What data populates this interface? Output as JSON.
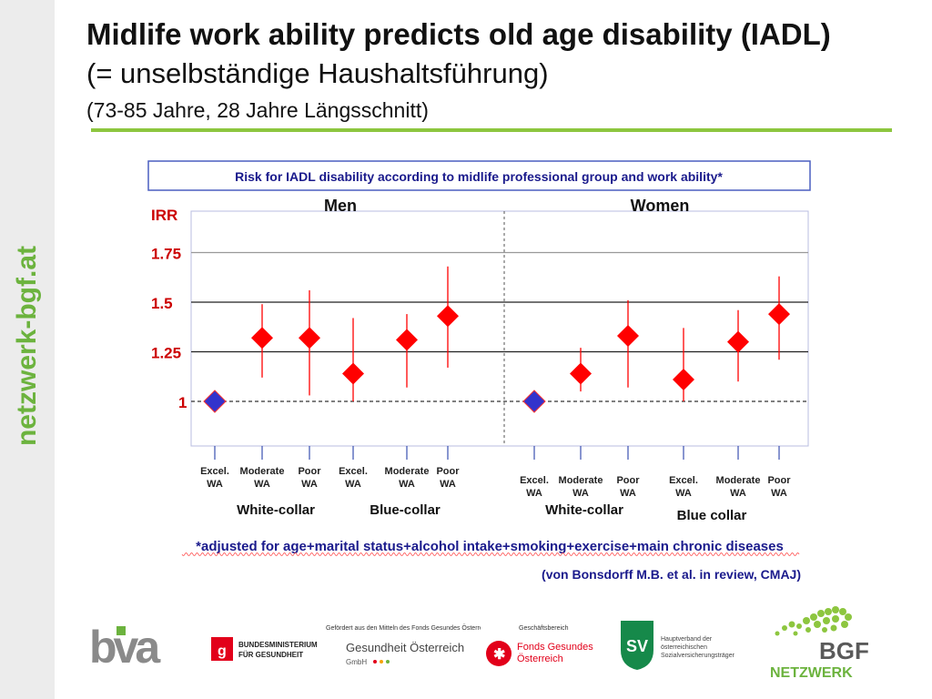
{
  "sidebar": {
    "text": "netzwerk-bgf.at"
  },
  "header": {
    "title": "Midlife work ability predicts old age disability (IADL)",
    "subtitle1": "(= unselbständige Haushaltsführung)",
    "subtitle2": "(73-85 Jahre, 28 Jahre Längsschnitt)"
  },
  "chart_data": {
    "type": "scatter",
    "title": "Risk for IADL disability according to midlife professional group and work ability*",
    "ylabel": "IRR",
    "ylim": [
      0.8,
      2.0
    ],
    "yticks": [
      "1.75",
      "1.5",
      "1.25",
      "1"
    ],
    "ytick_values": [
      1.75,
      1.5,
      1.25,
      1.0
    ],
    "reference_line": 1.0,
    "panels": [
      {
        "name": "Men",
        "groups": [
          {
            "name": "White-collar",
            "points": [
              {
                "label": "Excel. WA",
                "value": 1.0,
                "low": 1.0,
                "high": 1.0,
                "reference": true
              },
              {
                "label": "Moderate WA",
                "value": 1.32,
                "low": 1.12,
                "high": 1.49
              },
              {
                "label": "Poor WA",
                "value": 1.32,
                "low": 1.03,
                "high": 1.56
              }
            ]
          },
          {
            "name": "Blue-collar",
            "points": [
              {
                "label": "Excel. WA",
                "value": 1.14,
                "low": 1.0,
                "high": 1.42
              },
              {
                "label": "Moderate WA",
                "value": 1.31,
                "low": 1.07,
                "high": 1.44
              },
              {
                "label": "Poor WA",
                "value": 1.43,
                "low": 1.17,
                "high": 1.68
              }
            ]
          }
        ]
      },
      {
        "name": "Women",
        "groups": [
          {
            "name": "White-collar",
            "points": [
              {
                "label": "Excel. WA",
                "value": 1.0,
                "low": 1.0,
                "high": 1.0,
                "reference": true
              },
              {
                "label": "Moderate WA",
                "value": 1.14,
                "low": 1.05,
                "high": 1.27
              },
              {
                "label": "Poor WA",
                "value": 1.33,
                "low": 1.07,
                "high": 1.51
              }
            ]
          },
          {
            "name": "Blue collar",
            "points": [
              {
                "label": "Excel. WA",
                "value": 1.11,
                "low": 1.0,
                "high": 1.37
              },
              {
                "label": "Moderate WA",
                "value": 1.3,
                "low": 1.1,
                "high": 1.46
              },
              {
                "label": "Poor WA",
                "value": 1.44,
                "low": 1.21,
                "high": 1.63
              }
            ]
          }
        ]
      }
    ],
    "footnote": "*adjusted for age+marital status+alcohol intake+smoking+exercise+main chronic diseases",
    "citation": "(von Bonsdorff M.B. et al. in review, CMAJ)"
  },
  "logos": {
    "bva": "bva",
    "bmg_line1": "BUNDESMINISTERIUM",
    "bmg_line2": "FÜR GESUNDHEIT",
    "gesundheit_caption": "Gefördert aus den Mitteln des Fonds Gesundes Österreich",
    "gesundheit_name": "Gesundheit Österreich",
    "gesundheit_sub": "GmbH",
    "fgoe_caption": "Geschäftsbereich",
    "fgoe_line1": "Fonds Gesundes",
    "fgoe_line2": "Österreich",
    "sv_mark": "SV",
    "hv_line1": "Hauptverband der",
    "hv_line2": "österreichischen",
    "hv_line3": "Sozialversicherungsträger",
    "bgf_brand": "BGF",
    "bgf_sub": "NETZWERK"
  },
  "colors": {
    "brand_green": "#6cb33e",
    "rule_green": "#8dc63f",
    "marker_red": "#ff0000",
    "marker_blue": "#3333cc",
    "axis_red": "#cc0000",
    "title_box_border": "#4a5fc1"
  }
}
